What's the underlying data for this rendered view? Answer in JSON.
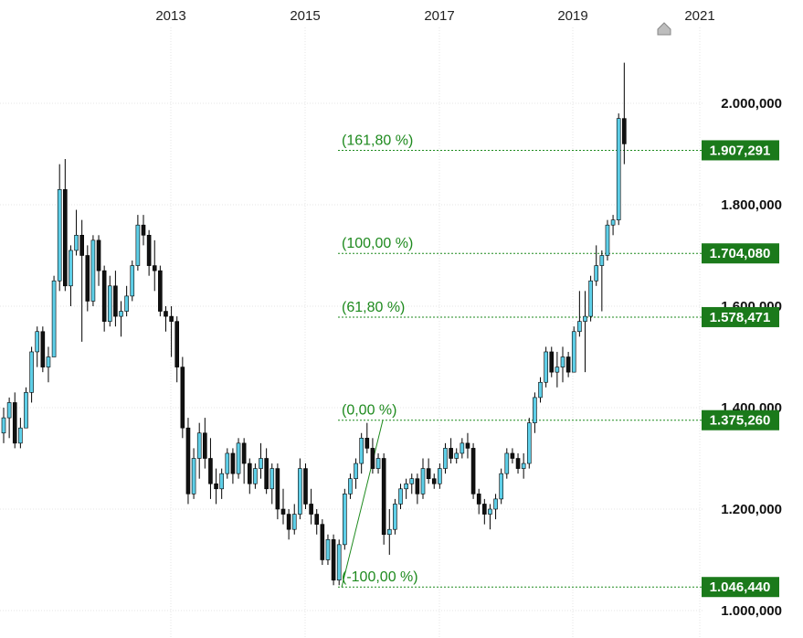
{
  "chart_data": {
    "type": "candlestick",
    "x_ticks": [
      "2013",
      "2015",
      "2017",
      "2019",
      "2021"
    ],
    "y_ticks": [
      "2.000,000",
      "1.800,000",
      "1.600,000",
      "1.400,000",
      "1.200,000",
      "1.000,000"
    ],
    "ylim": [
      0.96,
      2.1
    ],
    "grid": true,
    "fib_levels": [
      {
        "label": "(161,80 %)",
        "value": 1.907291,
        "badge": "1.907,291"
      },
      {
        "label": "(100,00 %)",
        "value": 1.70408,
        "badge": "1.704,080"
      },
      {
        "label": "(61,80 %)",
        "value": 1.578471,
        "badge": "1.578,471"
      },
      {
        "label": "(0,00 %)",
        "value": 1.37526,
        "badge": "1.375,260"
      },
      {
        "label": "(-100,00 %)",
        "value": 1.04644,
        "badge": "1.046,440"
      }
    ],
    "candles": [
      [
        1.35,
        1.4,
        1.33,
        1.38
      ],
      [
        1.38,
        1.42,
        1.34,
        1.41
      ],
      [
        1.41,
        1.43,
        1.32,
        1.33
      ],
      [
        1.33,
        1.38,
        1.32,
        1.36
      ],
      [
        1.36,
        1.44,
        1.36,
        1.43
      ],
      [
        1.43,
        1.52,
        1.41,
        1.51
      ],
      [
        1.51,
        1.56,
        1.48,
        1.55
      ],
      [
        1.55,
        1.56,
        1.47,
        1.48
      ],
      [
        1.48,
        1.52,
        1.45,
        1.5
      ],
      [
        1.5,
        1.66,
        1.5,
        1.65
      ],
      [
        1.65,
        1.88,
        1.63,
        1.83
      ],
      [
        1.83,
        1.89,
        1.63,
        1.64
      ],
      [
        1.64,
        1.72,
        1.6,
        1.71
      ],
      [
        1.71,
        1.79,
        1.7,
        1.74
      ],
      [
        1.74,
        1.77,
        1.53,
        1.7
      ],
      [
        1.7,
        1.72,
        1.59,
        1.61
      ],
      [
        1.61,
        1.74,
        1.6,
        1.73
      ],
      [
        1.73,
        1.74,
        1.64,
        1.67
      ],
      [
        1.67,
        1.68,
        1.55,
        1.57
      ],
      [
        1.57,
        1.66,
        1.56,
        1.64
      ],
      [
        1.64,
        1.67,
        1.56,
        1.58
      ],
      [
        1.58,
        1.61,
        1.54,
        1.59
      ],
      [
        1.59,
        1.64,
        1.58,
        1.62
      ],
      [
        1.62,
        1.69,
        1.61,
        1.68
      ],
      [
        1.68,
        1.78,
        1.67,
        1.76
      ],
      [
        1.76,
        1.78,
        1.72,
        1.74
      ],
      [
        1.74,
        1.75,
        1.66,
        1.68
      ],
      [
        1.68,
        1.73,
        1.63,
        1.67
      ],
      [
        1.67,
        1.68,
        1.58,
        1.59
      ],
      [
        1.59,
        1.6,
        1.55,
        1.58
      ],
      [
        1.58,
        1.6,
        1.5,
        1.57
      ],
      [
        1.57,
        1.58,
        1.45,
        1.48
      ],
      [
        1.48,
        1.5,
        1.34,
        1.36
      ],
      [
        1.36,
        1.38,
        1.21,
        1.23
      ],
      [
        1.23,
        1.32,
        1.22,
        1.3
      ],
      [
        1.3,
        1.37,
        1.26,
        1.35
      ],
      [
        1.35,
        1.38,
        1.28,
        1.3
      ],
      [
        1.3,
        1.34,
        1.22,
        1.25
      ],
      [
        1.25,
        1.28,
        1.21,
        1.24
      ],
      [
        1.24,
        1.28,
        1.22,
        1.27
      ],
      [
        1.27,
        1.32,
        1.26,
        1.31
      ],
      [
        1.31,
        1.32,
        1.25,
        1.27
      ],
      [
        1.27,
        1.34,
        1.26,
        1.33
      ],
      [
        1.33,
        1.34,
        1.25,
        1.29
      ],
      [
        1.29,
        1.3,
        1.23,
        1.25
      ],
      [
        1.25,
        1.29,
        1.24,
        1.28
      ],
      [
        1.28,
        1.33,
        1.26,
        1.3
      ],
      [
        1.3,
        1.32,
        1.23,
        1.24
      ],
      [
        1.24,
        1.29,
        1.21,
        1.28
      ],
      [
        1.28,
        1.29,
        1.18,
        1.2
      ],
      [
        1.2,
        1.24,
        1.17,
        1.19
      ],
      [
        1.19,
        1.2,
        1.14,
        1.16
      ],
      [
        1.16,
        1.21,
        1.15,
        1.19
      ],
      [
        1.19,
        1.3,
        1.18,
        1.28
      ],
      [
        1.28,
        1.29,
        1.2,
        1.21
      ],
      [
        1.21,
        1.24,
        1.17,
        1.19
      ],
      [
        1.19,
        1.2,
        1.15,
        1.17
      ],
      [
        1.17,
        1.18,
        1.09,
        1.1
      ],
      [
        1.1,
        1.15,
        1.09,
        1.14
      ],
      [
        1.14,
        1.15,
        1.05,
        1.06
      ],
      [
        1.06,
        1.14,
        1.05,
        1.13
      ],
      [
        1.13,
        1.24,
        1.12,
        1.23
      ],
      [
        1.23,
        1.27,
        1.22,
        1.26
      ],
      [
        1.26,
        1.3,
        1.24,
        1.29
      ],
      [
        1.29,
        1.35,
        1.27,
        1.34
      ],
      [
        1.34,
        1.37,
        1.31,
        1.32
      ],
      [
        1.32,
        1.34,
        1.27,
        1.28
      ],
      [
        1.28,
        1.31,
        1.27,
        1.3
      ],
      [
        1.3,
        1.31,
        1.13,
        1.15
      ],
      [
        1.15,
        1.2,
        1.11,
        1.16
      ],
      [
        1.16,
        1.22,
        1.15,
        1.21
      ],
      [
        1.21,
        1.25,
        1.2,
        1.24
      ],
      [
        1.24,
        1.26,
        1.22,
        1.25
      ],
      [
        1.25,
        1.27,
        1.23,
        1.26
      ],
      [
        1.26,
        1.27,
        1.21,
        1.23
      ],
      [
        1.23,
        1.3,
        1.22,
        1.28
      ],
      [
        1.28,
        1.3,
        1.25,
        1.26
      ],
      [
        1.26,
        1.27,
        1.24,
        1.25
      ],
      [
        1.25,
        1.29,
        1.24,
        1.28
      ],
      [
        1.28,
        1.33,
        1.27,
        1.32
      ],
      [
        1.32,
        1.34,
        1.29,
        1.3
      ],
      [
        1.3,
        1.32,
        1.29,
        1.31
      ],
      [
        1.31,
        1.34,
        1.3,
        1.33
      ],
      [
        1.33,
        1.35,
        1.3,
        1.32
      ],
      [
        1.32,
        1.33,
        1.22,
        1.23
      ],
      [
        1.23,
        1.24,
        1.19,
        1.21
      ],
      [
        1.21,
        1.22,
        1.17,
        1.19
      ],
      [
        1.19,
        1.21,
        1.16,
        1.2
      ],
      [
        1.2,
        1.23,
        1.18,
        1.22
      ],
      [
        1.22,
        1.28,
        1.21,
        1.27
      ],
      [
        1.27,
        1.32,
        1.26,
        1.31
      ],
      [
        1.31,
        1.32,
        1.29,
        1.3
      ],
      [
        1.3,
        1.31,
        1.27,
        1.28
      ],
      [
        1.28,
        1.31,
        1.26,
        1.29
      ],
      [
        1.29,
        1.38,
        1.28,
        1.37
      ],
      [
        1.37,
        1.43,
        1.35,
        1.42
      ],
      [
        1.42,
        1.46,
        1.41,
        1.45
      ],
      [
        1.45,
        1.52,
        1.44,
        1.51
      ],
      [
        1.51,
        1.52,
        1.46,
        1.47
      ],
      [
        1.47,
        1.51,
        1.44,
        1.48
      ],
      [
        1.48,
        1.52,
        1.45,
        1.5
      ],
      [
        1.5,
        1.51,
        1.46,
        1.47
      ],
      [
        1.47,
        1.56,
        1.47,
        1.55
      ],
      [
        1.55,
        1.63,
        1.54,
        1.57
      ],
      [
        1.57,
        1.63,
        1.47,
        1.58
      ],
      [
        1.58,
        1.66,
        1.57,
        1.65
      ],
      [
        1.65,
        1.72,
        1.64,
        1.68
      ],
      [
        1.68,
        1.71,
        1.59,
        1.7
      ],
      [
        1.7,
        1.77,
        1.69,
        1.76
      ],
      [
        1.76,
        1.78,
        1.74,
        1.77
      ],
      [
        1.77,
        1.98,
        1.76,
        1.97
      ],
      [
        1.97,
        2.08,
        1.88,
        1.92
      ]
    ]
  }
}
